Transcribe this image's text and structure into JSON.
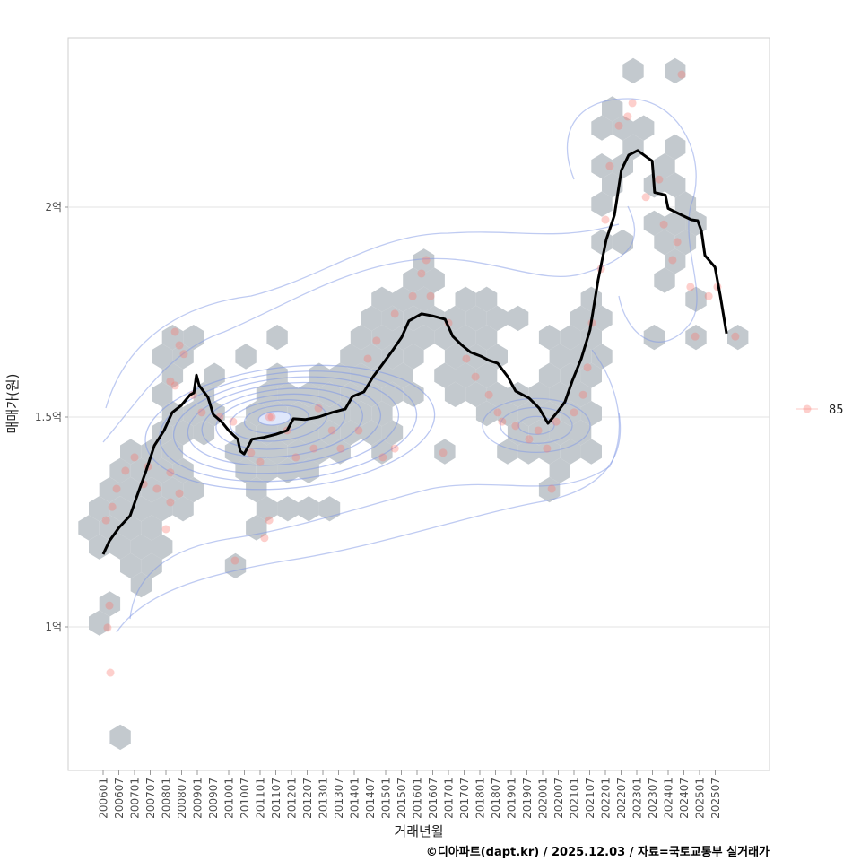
{
  "chart_data": {
    "type": "scatter",
    "title": "",
    "xlabel": "거래년월",
    "ylabel": "매매가(원)",
    "caption": "©디아파트(dapt.kr) / 2025.12.03 / 자료=국토교통부 실거래가",
    "ylim": [
      0.66,
      2.41
    ],
    "xlim": [
      2004.9,
      2027.2
    ],
    "grid": "horizontal",
    "y_ticks": [
      {
        "value": 1.0,
        "label": "1억"
      },
      {
        "value": 1.5,
        "label": "1.5억"
      },
      {
        "value": 2.0,
        "label": "2억"
      }
    ],
    "x_ticks": [
      "200601",
      "200607",
      "200701",
      "200707",
      "200801",
      "200807",
      "200901",
      "200907",
      "201001",
      "201007",
      "201101",
      "201107",
      "201201",
      "201207",
      "201301",
      "201307",
      "201401",
      "201407",
      "201501",
      "201507",
      "201601",
      "201607",
      "201701",
      "201707",
      "201801",
      "201807",
      "201901",
      "201907",
      "202001",
      "202007",
      "202101",
      "202107",
      "202201",
      "202207",
      "202301",
      "202307",
      "202401",
      "202407",
      "202501",
      "202507"
    ],
    "x_tick_start_year": 2006.0,
    "x_tick_step_years": 0.5,
    "legend": {
      "placement": "right",
      "entries": [
        {
          "label": "85",
          "color": "#F8766D"
        }
      ]
    },
    "colors": {
      "points": "#F8766D",
      "hex": "#c3c9ce",
      "contour": "#7f97e6",
      "line": "#000000",
      "grid": "#e3e3e3"
    },
    "hexbin": {
      "origin": [
        2022.886,
        2.3248
      ],
      "binwidth": [
        0.667,
        0.04536
      ],
      "cells": [
        [
          0,
          0
        ],
        [
          0,
          2
        ],
        [
          2,
          -1
        ],
        [
          3,
          -2
        ],
        [
          3,
          -1
        ],
        [
          3,
          0
        ],
        [
          4,
          0
        ],
        [
          4,
          2
        ],
        [
          5,
          -2
        ],
        [
          5,
          -1
        ],
        [
          5,
          1
        ],
        [
          6,
          -1
        ],
        [
          6,
          1
        ],
        [
          6,
          2
        ],
        [
          7,
          -2
        ],
        [
          7,
          2
        ],
        [
          8,
          1
        ],
        [
          8,
          2
        ],
        [
          8,
          3
        ],
        [
          9,
          -2
        ],
        [
          9,
          -1
        ],
        [
          9,
          1
        ],
        [
          9,
          2
        ],
        [
          10,
          -10
        ],
        [
          10,
          2
        ],
        [
          11,
          -11
        ],
        [
          11,
          -10
        ],
        [
          11,
          1
        ],
        [
          12,
          -12
        ],
        [
          12,
          -11
        ],
        [
          12,
          -10
        ],
        [
          12,
          -8
        ],
        [
          12,
          -7
        ],
        [
          12,
          -2
        ],
        [
          12,
          3
        ],
        [
          13,
          -13
        ],
        [
          13,
          -12
        ],
        [
          13,
          -11
        ],
        [
          13,
          -10
        ],
        [
          13,
          -9
        ],
        [
          13,
          -8
        ],
        [
          13,
          -7
        ],
        [
          13,
          -6
        ],
        [
          13,
          -3
        ],
        [
          13,
          -2
        ],
        [
          14,
          -22
        ],
        [
          14,
          -21
        ],
        [
          14,
          -17
        ],
        [
          14,
          -13
        ],
        [
          14,
          -12
        ],
        [
          14,
          -11
        ],
        [
          14,
          -10
        ],
        [
          14,
          -9
        ],
        [
          14,
          -8
        ],
        [
          14,
          -7
        ],
        [
          14,
          -4
        ],
        [
          14,
          -3
        ],
        [
          14,
          -2
        ],
        [
          14,
          1
        ],
        [
          14,
          3
        ],
        [
          14,
          5
        ],
        [
          15,
          -23
        ],
        [
          15,
          -22
        ],
        [
          15,
          -19
        ],
        [
          15,
          -14
        ],
        [
          15,
          -13
        ],
        [
          15,
          -12
        ],
        [
          15,
          -11
        ],
        [
          15,
          -9
        ],
        [
          15,
          -8
        ],
        [
          15,
          -7
        ],
        [
          15,
          -4
        ],
        [
          15,
          -3
        ],
        [
          15,
          -2
        ],
        [
          16,
          -22
        ],
        [
          16,
          -20
        ],
        [
          16,
          -17
        ],
        [
          16,
          -15
        ],
        [
          16,
          -14
        ],
        [
          16,
          -13
        ],
        [
          16,
          -12
        ],
        [
          16,
          -11
        ],
        [
          16,
          -9
        ],
        [
          16,
          -8
        ],
        [
          16,
          -7
        ],
        [
          16,
          -4
        ],
        [
          16,
          -3
        ],
        [
          16,
          -2
        ],
        [
          17,
          -23
        ],
        [
          17,
          -21
        ],
        [
          17,
          -18
        ],
        [
          17,
          -17
        ],
        [
          17,
          -16
        ],
        [
          17,
          -15
        ],
        [
          17,
          -14
        ],
        [
          17,
          -13
        ],
        [
          17,
          -12
        ],
        [
          17,
          -11
        ],
        [
          17,
          -9
        ],
        [
          17,
          -8
        ],
        [
          17,
          -7
        ],
        [
          17,
          -6
        ],
        [
          17,
          -5
        ],
        [
          17,
          -4
        ],
        [
          17,
          -3
        ],
        [
          18,
          -22
        ],
        [
          18,
          -21
        ],
        [
          18,
          -20
        ],
        [
          18,
          -18
        ],
        [
          18,
          -17
        ],
        [
          18,
          -16
        ],
        [
          18,
          -15
        ],
        [
          18,
          -14
        ],
        [
          18,
          -13
        ],
        [
          18,
          -12
        ],
        [
          18,
          -7
        ],
        [
          18,
          -6
        ],
        [
          18,
          -5
        ],
        [
          18,
          -4
        ],
        [
          18,
          -3
        ],
        [
          18,
          -2
        ],
        [
          19,
          -23
        ],
        [
          19,
          -22
        ],
        [
          19,
          -21
        ],
        [
          19,
          -19
        ],
        [
          19,
          -18
        ],
        [
          19,
          -17
        ],
        [
          19,
          -16
        ],
        [
          19,
          -15
        ],
        [
          19,
          -14
        ],
        [
          19,
          -13
        ],
        [
          19,
          -12
        ],
        [
          19,
          -6
        ],
        [
          19,
          -5
        ],
        [
          19,
          -4
        ],
        [
          19,
          -3
        ],
        [
          20,
          -24
        ],
        [
          20,
          -23
        ],
        [
          20,
          -22
        ],
        [
          20,
          -19
        ],
        [
          20,
          -18
        ],
        [
          20,
          -17
        ],
        [
          20,
          -16
        ],
        [
          20,
          -15
        ],
        [
          20,
          -14
        ],
        [
          20,
          -12
        ],
        [
          20,
          -9
        ],
        [
          20,
          -6
        ],
        [
          20,
          -5
        ],
        [
          20,
          -4
        ],
        [
          20,
          -3
        ],
        [
          20,
          -2
        ],
        [
          21,
          -25
        ],
        [
          21,
          -24
        ],
        [
          21,
          -23
        ],
        [
          21,
          -22
        ],
        [
          21,
          -19
        ],
        [
          21,
          -18
        ],
        [
          21,
          -17
        ],
        [
          21,
          -16
        ],
        [
          21,
          -4
        ],
        [
          22,
          -25
        ],
        [
          22,
          -24
        ],
        [
          22,
          -23
        ],
        [
          22,
          -22
        ],
        [
          22,
          -21
        ],
        [
          22,
          -18
        ],
        [
          22,
          -4
        ],
        [
          23,
          -26
        ],
        [
          23,
          -25
        ],
        [
          23,
          -24
        ],
        [
          23,
          -23
        ],
        [
          23,
          -22
        ],
        [
          23,
          -18
        ],
        [
          23,
          -17
        ],
        [
          23,
          -16
        ],
        [
          23,
          -15
        ],
        [
          24,
          -26
        ],
        [
          24,
          -25
        ],
        [
          24,
          -24
        ],
        [
          24,
          -23
        ],
        [
          24,
          -18
        ],
        [
          25,
          -26
        ],
        [
          25,
          -25
        ],
        [
          25,
          -24
        ],
        [
          25,
          -23
        ],
        [
          26,
          -24
        ],
        [
          26,
          -23
        ],
        [
          26,
          -19
        ],
        [
          27,
          -24
        ],
        [
          28,
          -25
        ],
        [
          29,
          -26
        ],
        [
          35,
          -25
        ]
      ]
    },
    "points": [
      [
        2006.14,
        0.998
      ],
      [
        2006.2,
        1.051
      ],
      [
        2006.23,
        0.891
      ],
      [
        2006.09,
        1.254
      ],
      [
        2006.29,
        1.286
      ],
      [
        2006.43,
        1.329
      ],
      [
        2006.71,
        1.372
      ],
      [
        2007.0,
        1.404
      ],
      [
        2007.29,
        1.34
      ],
      [
        2007.43,
        1.382
      ],
      [
        2007.71,
        1.329
      ],
      [
        2008.14,
        1.368
      ],
      [
        2008.14,
        1.297
      ],
      [
        2008.0,
        1.233
      ],
      [
        2008.43,
        1.318
      ],
      [
        2008.29,
        1.703
      ],
      [
        2008.43,
        1.671
      ],
      [
        2008.57,
        1.65
      ],
      [
        2008.14,
        1.585
      ],
      [
        2008.29,
        1.575
      ],
      [
        2008.86,
        1.553
      ],
      [
        2009.14,
        1.511
      ],
      [
        2009.71,
        1.5
      ],
      [
        2010.14,
        1.489
      ],
      [
        2010.71,
        1.415
      ],
      [
        2011.0,
        1.393
      ],
      [
        2011.29,
        1.5
      ],
      [
        2011.37,
        1.5
      ],
      [
        2011.86,
        1.468
      ],
      [
        2012.14,
        1.404
      ],
      [
        2012.71,
        1.425
      ],
      [
        2012.86,
        1.521
      ],
      [
        2013.29,
        1.468
      ],
      [
        2013.57,
        1.425
      ],
      [
        2014.14,
        1.468
      ],
      [
        2014.43,
        1.639
      ],
      [
        2014.71,
        1.682
      ],
      [
        2015.29,
        1.746
      ],
      [
        2015.86,
        1.788
      ],
      [
        2016.14,
        1.842
      ],
      [
        2016.29,
        1.874
      ],
      [
        2016.43,
        1.788
      ],
      [
        2017.0,
        1.724
      ],
      [
        2017.57,
        1.639
      ],
      [
        2017.86,
        1.596
      ],
      [
        2018.29,
        1.553
      ],
      [
        2018.57,
        1.511
      ],
      [
        2018.71,
        1.489
      ],
      [
        2019.14,
        1.479
      ],
      [
        2019.57,
        1.447
      ],
      [
        2019.86,
        1.468
      ],
      [
        2020.14,
        1.425
      ],
      [
        2020.43,
        1.489
      ],
      [
        2021.0,
        1.511
      ],
      [
        2021.29,
        1.553
      ],
      [
        2021.43,
        1.618
      ],
      [
        2021.57,
        1.724
      ],
      [
        2021.86,
        1.853
      ],
      [
        2022.0,
        1.97
      ],
      [
        2022.14,
        2.098
      ],
      [
        2022.43,
        2.194
      ],
      [
        2022.71,
        2.216
      ],
      [
        2022.86,
        2.248
      ],
      [
        2023.29,
        2.024
      ],
      [
        2023.71,
        2.066
      ],
      [
        2023.86,
        1.959
      ],
      [
        2024.14,
        1.874
      ],
      [
        2024.29,
        1.917
      ],
      [
        2024.43,
        2.316
      ],
      [
        2024.71,
        1.81
      ],
      [
        2024.86,
        1.692
      ],
      [
        2025.29,
        1.788
      ],
      [
        2025.57,
        1.81
      ],
      [
        2026.14,
        1.692
      ],
      [
        2011.14,
        1.212
      ],
      [
        2011.29,
        1.254
      ],
      [
        2010.2,
        1.158
      ],
      [
        2020.29,
        1.329
      ],
      [
        2015.29,
        1.425
      ],
      [
        2016.83,
        1.415
      ],
      [
        2014.91,
        1.404
      ]
    ],
    "moving_average": [
      [
        2006.0,
        1.173
      ],
      [
        2006.2,
        1.205
      ],
      [
        2006.51,
        1.237
      ],
      [
        2006.86,
        1.265
      ],
      [
        2007.06,
        1.308
      ],
      [
        2007.37,
        1.372
      ],
      [
        2007.63,
        1.432
      ],
      [
        2007.94,
        1.468
      ],
      [
        2008.2,
        1.511
      ],
      [
        2008.49,
        1.528
      ],
      [
        2008.77,
        1.553
      ],
      [
        2008.89,
        1.558
      ],
      [
        2008.97,
        1.6
      ],
      [
        2009.06,
        1.575
      ],
      [
        2009.34,
        1.547
      ],
      [
        2009.51,
        1.506
      ],
      [
        2009.77,
        1.489
      ],
      [
        2010.0,
        1.468
      ],
      [
        2010.29,
        1.447
      ],
      [
        2010.37,
        1.419
      ],
      [
        2010.49,
        1.412
      ],
      [
        2010.74,
        1.447
      ],
      [
        2011.09,
        1.451
      ],
      [
        2011.51,
        1.459
      ],
      [
        2011.86,
        1.468
      ],
      [
        2012.06,
        1.496
      ],
      [
        2012.43,
        1.494
      ],
      [
        2012.86,
        1.5
      ],
      [
        2013.29,
        1.511
      ],
      [
        2013.71,
        1.519
      ],
      [
        2013.94,
        1.549
      ],
      [
        2014.31,
        1.56
      ],
      [
        2014.6,
        1.596
      ],
      [
        2014.94,
        1.63
      ],
      [
        2015.23,
        1.66
      ],
      [
        2015.51,
        1.69
      ],
      [
        2015.74,
        1.729
      ],
      [
        2016.14,
        1.746
      ],
      [
        2016.49,
        1.741
      ],
      [
        2016.89,
        1.733
      ],
      [
        2017.14,
        1.692
      ],
      [
        2017.43,
        1.671
      ],
      [
        2017.71,
        1.654
      ],
      [
        2018.03,
        1.645
      ],
      [
        2018.29,
        1.635
      ],
      [
        2018.57,
        1.628
      ],
      [
        2018.89,
        1.596
      ],
      [
        2019.14,
        1.562
      ],
      [
        2019.57,
        1.545
      ],
      [
        2019.89,
        1.521
      ],
      [
        2020.17,
        1.485
      ],
      [
        2020.46,
        1.511
      ],
      [
        2020.71,
        1.536
      ],
      [
        2020.94,
        1.585
      ],
      [
        2021.23,
        1.639
      ],
      [
        2021.51,
        1.707
      ],
      [
        2021.77,
        1.827
      ],
      [
        2022.03,
        1.923
      ],
      [
        2022.29,
        1.981
      ],
      [
        2022.51,
        2.088
      ],
      [
        2022.74,
        2.124
      ],
      [
        2023.03,
        2.135
      ],
      [
        2023.34,
        2.118
      ],
      [
        2023.49,
        2.11
      ],
      [
        2023.57,
        2.035
      ],
      [
        2023.91,
        2.029
      ],
      [
        2024.0,
        1.997
      ],
      [
        2024.43,
        1.981
      ],
      [
        2024.74,
        1.97
      ],
      [
        2024.94,
        1.968
      ],
      [
        2025.06,
        1.943
      ],
      [
        2025.17,
        1.885
      ],
      [
        2025.49,
        1.857
      ],
      [
        2025.66,
        1.789
      ],
      [
        2025.86,
        1.699
      ]
    ],
    "density_peaks": [
      [
        2011.4,
        1.5
      ],
      [
        2019.8,
        1.48
      ],
      [
        2023.3,
        2.1
      ]
    ]
  }
}
